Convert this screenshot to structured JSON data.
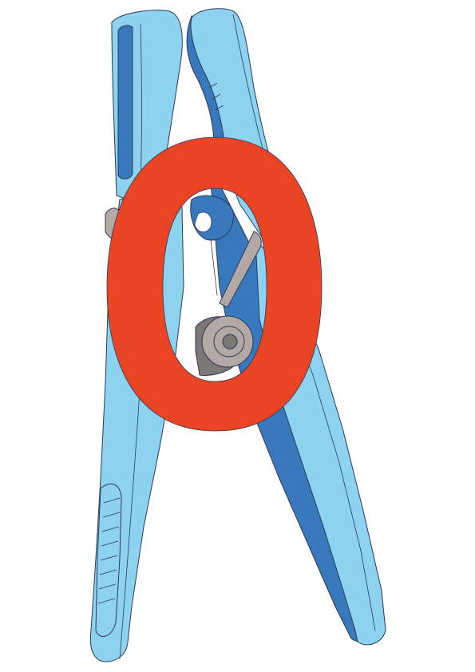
{
  "canvas": {
    "background": "#ffffff"
  },
  "colors": {
    "clip_body": "#8dd3f0",
    "clip_shadow": "#3878bd",
    "spring": "#b3a8a5",
    "spring_dark": "#7d7775",
    "numeral": "#e94423",
    "outline": "#2b3a55"
  },
  "subject": {
    "icon": "clothespin-icon"
  },
  "numeral": {
    "value": "0"
  }
}
